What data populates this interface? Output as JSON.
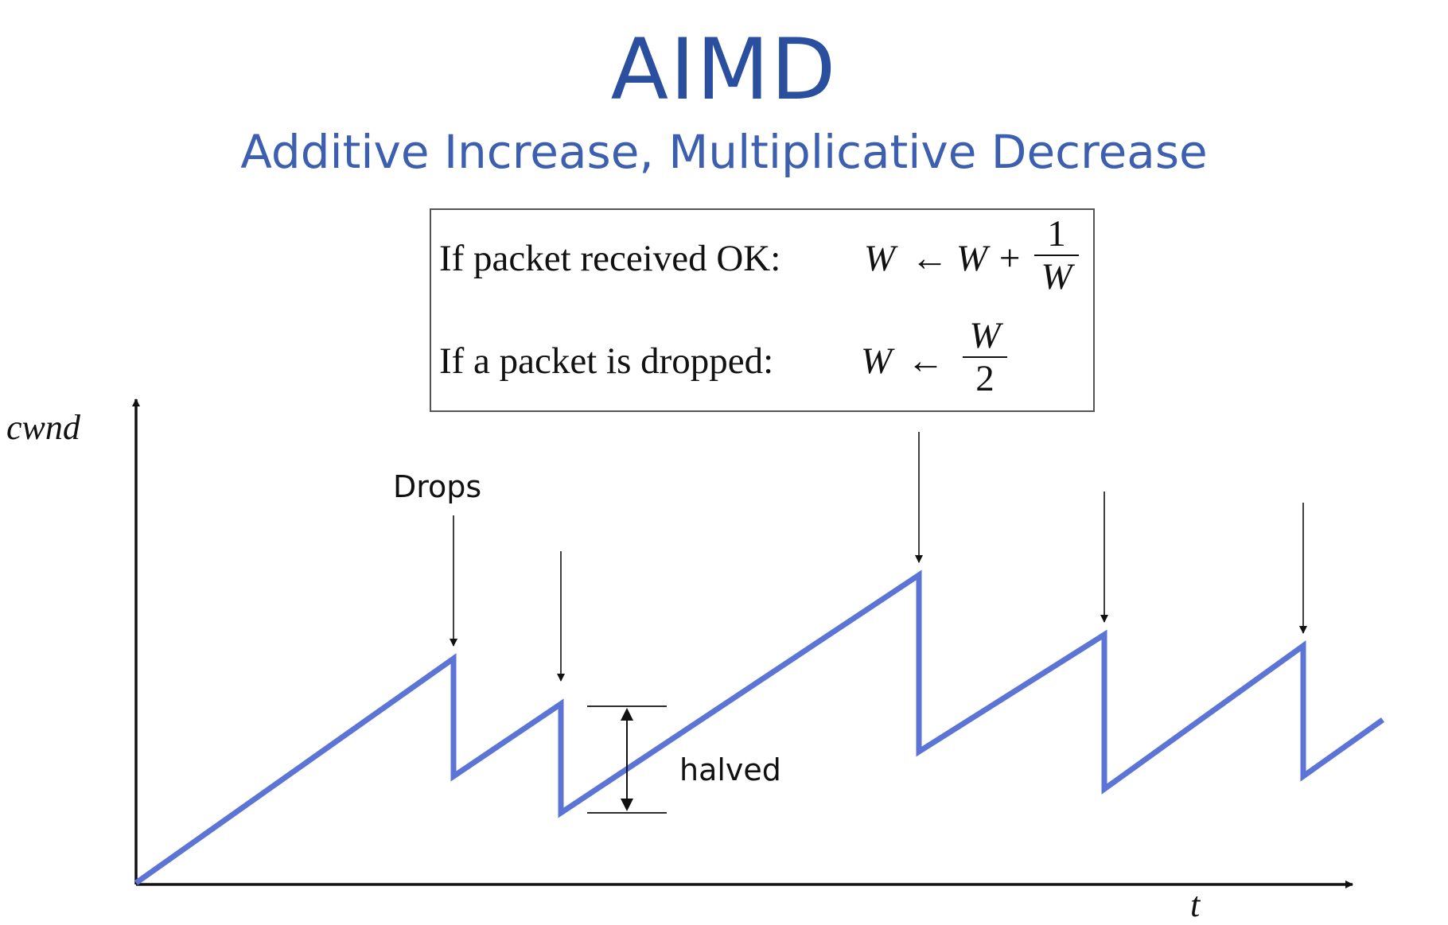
{
  "title": "AIMD",
  "subtitle": "Additive Increase, Multiplicative Decrease",
  "rules": {
    "received": {
      "label": "If packet received OK:",
      "lhs": "W",
      "arrow": "←",
      "rhs_term": "W +",
      "frac_num": "1",
      "frac_den": "W"
    },
    "dropped": {
      "label": "If a packet is dropped:",
      "lhs": "W",
      "arrow": "←",
      "frac_num": "W",
      "frac_den": "2"
    }
  },
  "axes": {
    "y_label": "cwnd",
    "x_label": "t"
  },
  "annotations": {
    "drops": "Drops",
    "halved": "halved"
  },
  "colors": {
    "title": "#2a4f9e",
    "subtitle": "#3c5fb0",
    "sawtooth": "#5b74d6",
    "ink": "#111111"
  }
}
